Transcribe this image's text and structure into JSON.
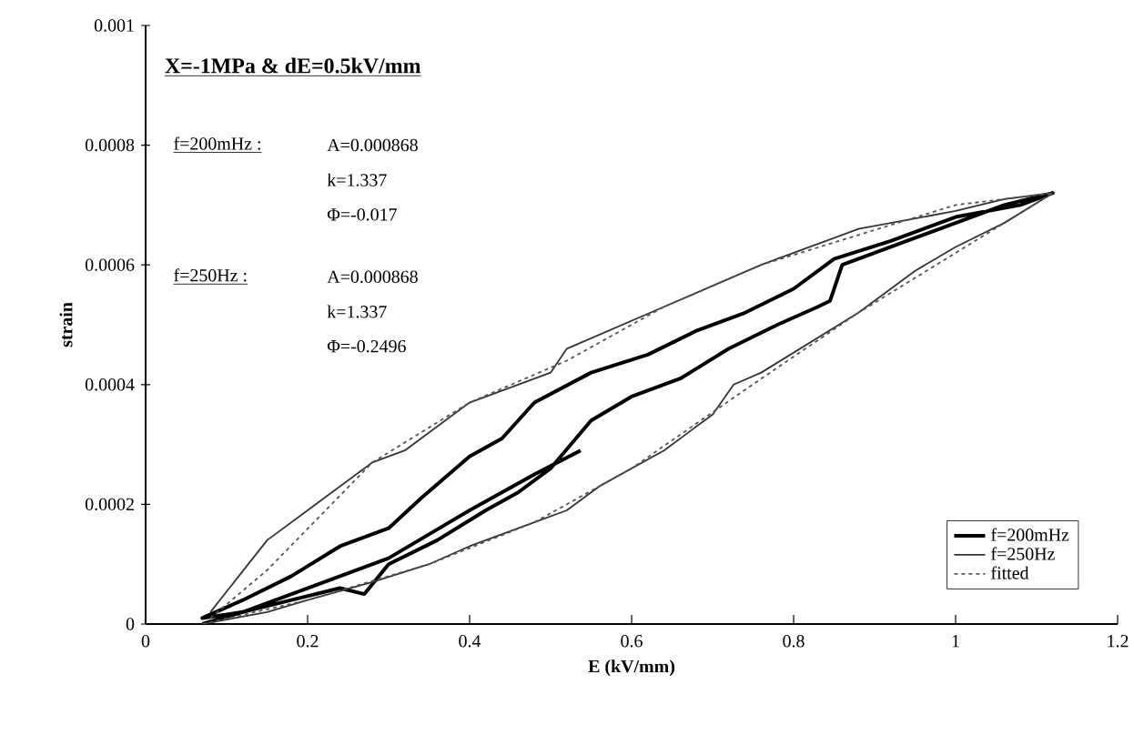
{
  "chart_data": {
    "type": "line",
    "title": "X=-1MPa & dE=0.5kV/mm",
    "xlabel": "E (kV/mm)",
    "ylabel": "strain",
    "annotations": [
      "f=200mHz :",
      "A=0.000868",
      "k=1.337",
      "Φ=-0.017",
      "f=250Hz :",
      "A=0.000868",
      "k=1.337",
      "Φ=-0.2496"
    ],
    "xlim": [
      0,
      1.2
    ],
    "ylim": [
      0,
      0.001
    ],
    "xticks": [
      0,
      0.2,
      0.4,
      0.6,
      0.8,
      1,
      1.2
    ],
    "yticks": [
      0,
      0.0002,
      0.0004,
      0.0006,
      0.0008,
      0.001
    ],
    "grid": false,
    "legend": "bottom right",
    "marker": "none",
    "series": [
      {
        "name": "f=200mHz",
        "color": "#000000",
        "line_style": "solid",
        "x": [
          0.07,
          0.12,
          0.18,
          0.24,
          0.27,
          0.3,
          0.36,
          0.42,
          0.46,
          0.5,
          0.55,
          0.6,
          0.66,
          0.72,
          0.78,
          0.83,
          0.845,
          0.86,
          0.92,
          1.0,
          1.06,
          1.12,
          1.08,
          1.0,
          0.92,
          0.85,
          0.8,
          0.74,
          0.68,
          0.62,
          0.55,
          0.48,
          0.44,
          0.4,
          0.34,
          0.3,
          0.24,
          0.18,
          0.12,
          0.07,
          0.12,
          0.2,
          0.3,
          0.4,
          0.48,
          0.537
        ],
        "values": [
          0.0,
          2e-05,
          4e-05,
          6e-05,
          5e-05,
          0.0001,
          0.00014,
          0.00019,
          0.00022,
          0.00026,
          0.00034,
          0.00038,
          0.00041,
          0.00046,
          0.0005,
          0.00053,
          0.00054,
          0.0006,
          0.00063,
          0.00067,
          0.0007,
          0.00072,
          0.0007,
          0.00068,
          0.00064,
          0.00061,
          0.00056,
          0.00052,
          0.00049,
          0.00045,
          0.00042,
          0.00037,
          0.00031,
          0.00028,
          0.00021,
          0.00016,
          0.00013,
          8e-05,
          4e-05,
          1e-05,
          2e-05,
          6e-05,
          0.00011,
          0.00019,
          0.00025,
          0.00029
        ]
      },
      {
        "name": "f=250Hz",
        "color": "#333333",
        "line_style": "solid",
        "x": [
          0.07,
          0.15,
          0.2,
          0.28,
          0.35,
          0.4,
          0.48,
          0.52,
          0.56,
          0.64,
          0.7,
          0.726,
          0.76,
          0.88,
          0.95,
          1.0,
          1.06,
          1.12,
          1.06,
          1.0,
          0.88,
          0.82,
          0.76,
          0.64,
          0.52,
          0.5,
          0.4,
          0.32,
          0.28,
          0.2,
          0.15,
          0.08
        ],
        "values": [
          0.0,
          2e-05,
          4e-05,
          7e-05,
          0.0001,
          0.00013,
          0.00017,
          0.00019,
          0.00023,
          0.00029,
          0.00035,
          0.0004,
          0.00042,
          0.00052,
          0.00059,
          0.00063,
          0.00067,
          0.00072,
          0.00071,
          0.00069,
          0.00066,
          0.00063,
          0.0006,
          0.00053,
          0.00046,
          0.00042,
          0.00037,
          0.00029,
          0.00027,
          0.00019,
          0.00014,
          2e-05
        ]
      },
      {
        "name": "fitted",
        "color": "#555555",
        "line_style": "dashed",
        "x": [
          0.07,
          0.2,
          0.35,
          0.48,
          0.6,
          0.76,
          0.88,
          1.0,
          1.12,
          1.0,
          0.88,
          0.76,
          0.64,
          0.52,
          0.4,
          0.28,
          0.15,
          0.08
        ],
        "values": [
          0.0,
          4e-05,
          0.0001,
          0.00017,
          0.00026,
          0.00041,
          0.00052,
          0.00062,
          0.00072,
          0.0007,
          0.00065,
          0.0006,
          0.00053,
          0.00044,
          0.00037,
          0.00027,
          9e-05,
          1e-05
        ]
      }
    ]
  }
}
